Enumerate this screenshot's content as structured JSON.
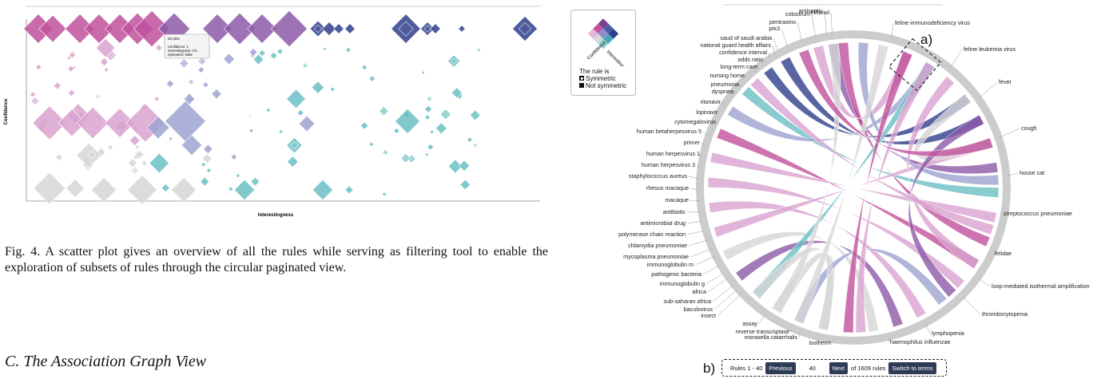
{
  "scatter": {
    "ylabel": "Confidence",
    "xlabel": "Interestingness",
    "tooltip": [
      "28 rules",
      "Confidence: 1",
      "Interestingness: 0.5",
      "Symmetric: false"
    ]
  },
  "caption": "Fig. 4.   A scatter plot gives an overview of all the rules while serving as filtering tool to enable the exploration of subsets of rules through the circular paginated view.",
  "section": "C.  The Association Graph View",
  "legend": {
    "axis_left": "Confidence",
    "axis_right": "Interestingness",
    "title": "The rule is",
    "items": [
      "Symmetric",
      "Not symmetric"
    ]
  },
  "annotations": {
    "a": "a)",
    "b": "b)"
  },
  "pager": {
    "range": "Rules 1 - 40",
    "prev": "Previous",
    "page_value": "40",
    "next": "Next",
    "total": "of 1609 rules",
    "switch": "Switch to terms"
  },
  "terms_left": [
    "antiseptic",
    "ethanol",
    "colostrum",
    "pentraxins",
    "ptx3",
    "saud of saudi arabia",
    "national guard health affairs",
    "confidence interval",
    "odds ratio",
    "long-term care",
    "nursing home",
    "pneumonia",
    "dyspnea",
    "ritonavir",
    "lopinavir",
    "cytomegalovirus",
    "human betaherpesvirus 5",
    "primer",
    "human herpesvirus 1",
    "human herpesvirus 3",
    "staphylococcus aureus",
    "rhesus macaque",
    "macaque",
    "antibiotic",
    "antimicrobial drug",
    "polymerase chain reaction",
    "chlamydia pneumoniae",
    "mycoplasma pneumoniae",
    "immunoglobulin m",
    "pathogenic bacteria",
    "immunoglobulin g",
    "africa",
    "sub-saharan africa",
    "baculovirus",
    "insect",
    "assay",
    "reverse transcriptase",
    "moraxella catarrhalis",
    "isotherm"
  ],
  "terms_right": [
    "feline immunodeficiency virus",
    "feline leukemia virus",
    "fever",
    "cough",
    "house cat",
    "streptococcus pneumoniae",
    "felidae",
    "loop-mediated isothermal amplification",
    "thrombocytopenia",
    "lymphopenia",
    "haemophilus influenzae"
  ],
  "colors": {
    "purple": "#8d5aa8",
    "magenta": "#c0519c",
    "pink": "#d9a3cf",
    "blue": "#2f3f8c",
    "lavender": "#9ea3d0",
    "teal": "#6bbfc4",
    "grey": "#d6d6d6"
  }
}
